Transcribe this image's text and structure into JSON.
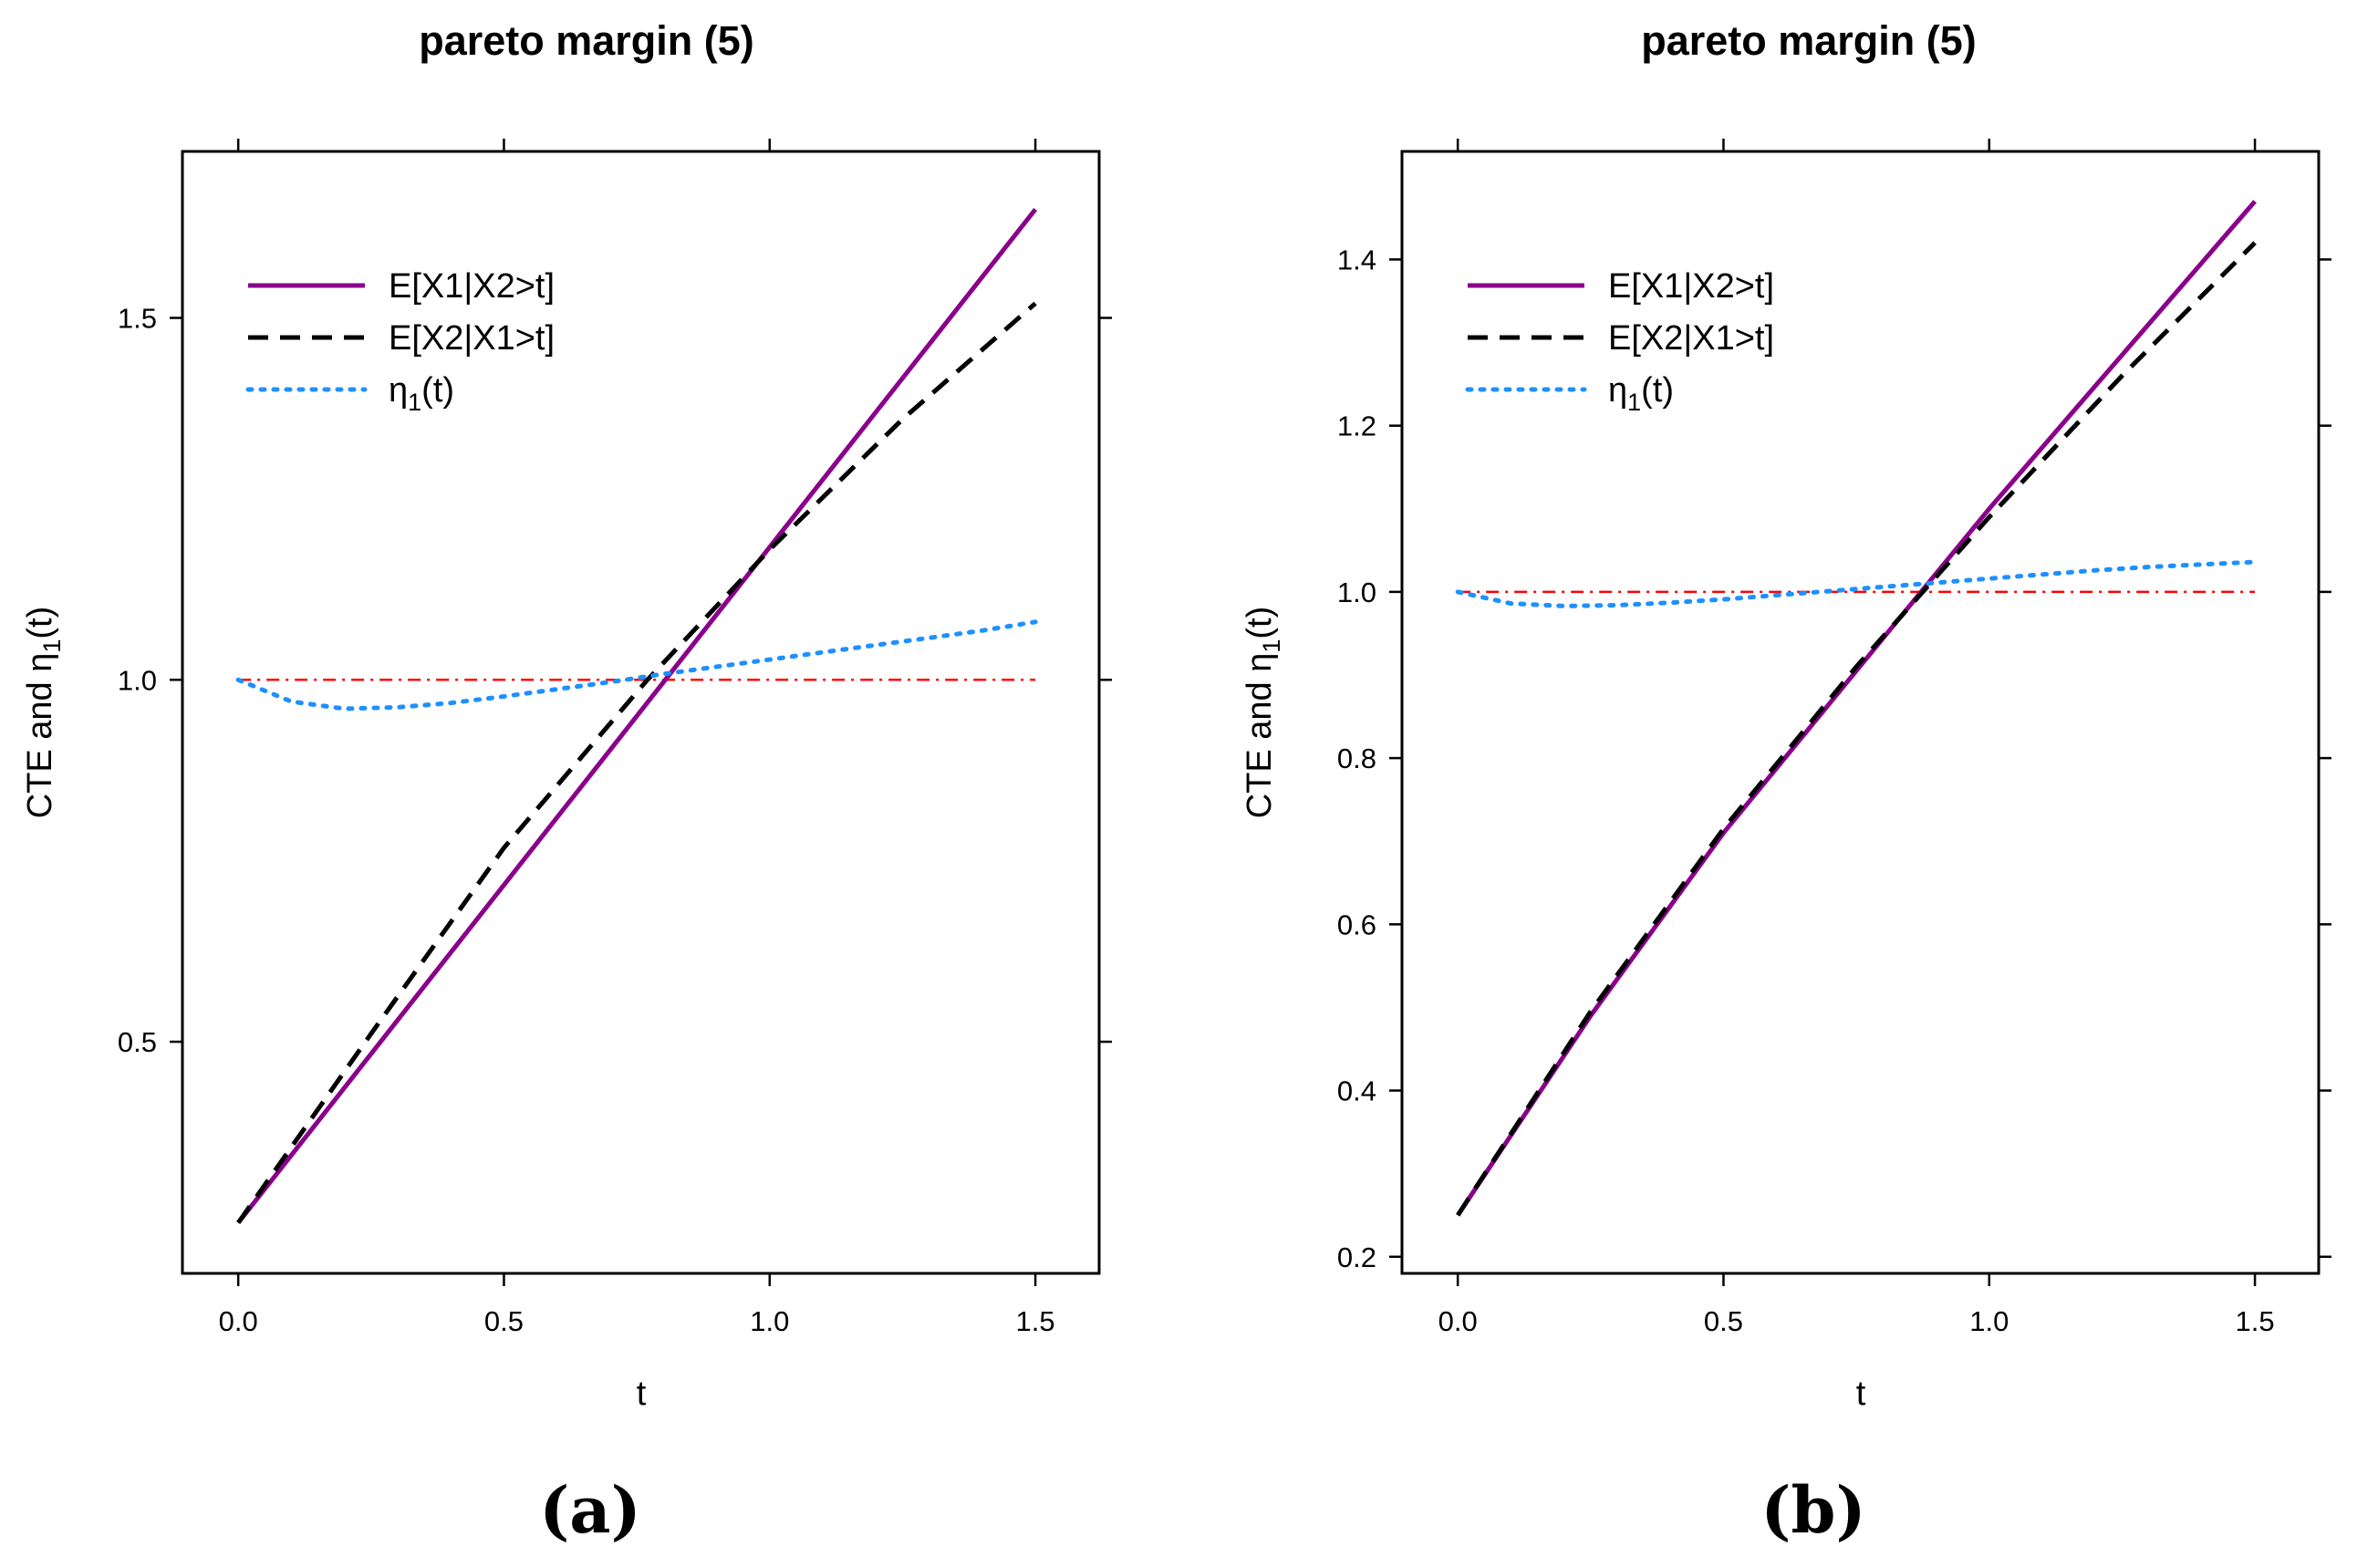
{
  "chart_data": [
    {
      "type": "line",
      "panel": "(a)",
      "title": "pareto margin (5)",
      "xlabel": "t",
      "ylabel": "CTE  and   η1(t)",
      "ylabel_parts": {
        "main": "CTE  and   η",
        "sub": "1",
        "tail": "(t)"
      },
      "xlim": [
        -0.105,
        1.62
      ],
      "ylim": [
        0.18,
        1.73
      ],
      "xticks": [
        0.0,
        0.5,
        1.0,
        1.5
      ],
      "xtick_labels": [
        "0.0",
        "0.5",
        "1.0",
        "1.5"
      ],
      "yticks": [
        0.5,
        1.0,
        1.5
      ],
      "ytick_labels": [
        "0.5",
        "1.0",
        "1.5"
      ],
      "reference_line": {
        "y": 1.0,
        "color": "#ff0000",
        "style": "dash-dot"
      },
      "series": [
        {
          "name": "E[X1|X2>t]",
          "color": "#8b008b",
          "style": "solid",
          "x": [
            0.0,
            1.5
          ],
          "y": [
            0.25,
            1.65
          ]
        },
        {
          "name": "E[X2|X1>t]",
          "color": "#000000",
          "style": "dashed",
          "x": [
            0.0,
            0.25,
            0.5,
            0.77,
            1.0,
            1.25,
            1.5
          ],
          "y": [
            0.25,
            0.511,
            0.768,
            1.0,
            1.18,
            1.36,
            1.52
          ]
        },
        {
          "name": "η1(t)",
          "legend_parts": {
            "main": "η",
            "sub": "1",
            "tail": "(t)"
          },
          "color": "#1e90ff",
          "style": "dotted",
          "x": [
            0.0,
            0.1,
            0.2,
            0.3,
            0.4,
            0.5,
            0.6,
            0.7,
            0.8,
            0.9,
            1.0,
            1.1,
            1.2,
            1.3,
            1.4,
            1.5
          ],
          "y": [
            1.0,
            0.97,
            0.96,
            0.962,
            0.968,
            0.977,
            0.987,
            0.997,
            1.008,
            1.018,
            1.028,
            1.038,
            1.048,
            1.058,
            1.068,
            1.08
          ]
        }
      ]
    },
    {
      "type": "line",
      "panel": "(b)",
      "title": "pareto margin (5)",
      "xlabel": "t",
      "ylabel": "CTE  and   η1(t)",
      "ylabel_parts": {
        "main": "CTE  and   η",
        "sub": "1",
        "tail": "(t)"
      },
      "xlim": [
        -0.105,
        1.62
      ],
      "ylim": [
        0.18,
        1.53
      ],
      "xticks": [
        0.0,
        0.5,
        1.0,
        1.5
      ],
      "xtick_labels": [
        "0.0",
        "0.5",
        "1.0",
        "1.5"
      ],
      "yticks": [
        0.2,
        0.4,
        0.6,
        0.8,
        1.0,
        1.2,
        1.4
      ],
      "ytick_labels": [
        "0.2",
        "0.4",
        "0.6",
        "0.8",
        "1.0",
        "1.2",
        "1.4"
      ],
      "reference_line": {
        "y": 1.0,
        "color": "#ff0000",
        "style": "dash-dot"
      },
      "series": [
        {
          "name": "E[X1|X2>t]",
          "color": "#8b008b",
          "style": "solid",
          "x": [
            0.0,
            0.25,
            0.5,
            0.75,
            1.0,
            1.25,
            1.5
          ],
          "y": [
            0.25,
            0.49,
            0.71,
            0.905,
            1.1,
            1.285,
            1.47
          ]
        },
        {
          "name": "E[X2|X1>t]",
          "color": "#000000",
          "style": "dashed",
          "x": [
            0.0,
            0.25,
            0.5,
            0.75,
            1.0,
            1.25,
            1.5
          ],
          "y": [
            0.25,
            0.495,
            0.715,
            0.91,
            1.09,
            1.26,
            1.42
          ]
        },
        {
          "name": "η1(t)",
          "legend_parts": {
            "main": "η",
            "sub": "1",
            "tail": "(t)"
          },
          "color": "#1e90ff",
          "style": "dotted",
          "x": [
            0.0,
            0.1,
            0.2,
            0.3,
            0.4,
            0.5,
            0.6,
            0.7,
            0.8,
            0.9,
            1.0,
            1.1,
            1.2,
            1.3,
            1.4,
            1.5
          ],
          "y": [
            1.0,
            0.986,
            0.983,
            0.984,
            0.987,
            0.991,
            0.996,
            1.001,
            1.006,
            1.011,
            1.016,
            1.021,
            1.026,
            1.03,
            1.033,
            1.036
          ]
        }
      ]
    }
  ]
}
